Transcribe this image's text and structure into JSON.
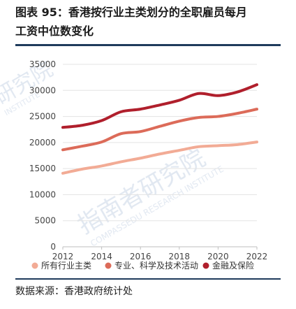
{
  "title": "图表 95：香港按行业主类划分的全职雇员每月\n工资中位数变化",
  "source": "数据来源：香港政府统计处",
  "watermark": {
    "cn": "指南者研究院",
    "en": "COMPASSEDU RESEARCH INSTITUTE",
    "cn_small": "研究院",
    "en_small": "INSTITUTE"
  },
  "colors": {
    "accent_rule": "#1f3b5c",
    "grid": "#e3e3e3"
  },
  "chart_data": {
    "type": "line",
    "x": [
      2012,
      2013,
      2014,
      2015,
      2016,
      2017,
      2018,
      2019,
      2020,
      2021,
      2022
    ],
    "x_ticks": [
      "2012",
      "2014",
      "2016",
      "2018",
      "2020",
      "2022"
    ],
    "y_ticks": [
      "0",
      "5000",
      "10000",
      "15000",
      "20000",
      "25000",
      "30000",
      "35000"
    ],
    "ylim": [
      0,
      35000
    ],
    "xlim": [
      2012,
      2022
    ],
    "grid": "horizontal",
    "legend_position": "bottom",
    "series": [
      {
        "name": "所有行业主类",
        "color": "#f2ab95",
        "values": [
          14100,
          14900,
          15500,
          16300,
          17000,
          17800,
          18500,
          19200,
          19400,
          19600,
          20100
        ]
      },
      {
        "name": "专业、科学及技术活动",
        "color": "#dc6b59",
        "values": [
          18600,
          19300,
          20100,
          21700,
          22100,
          23100,
          24100,
          24800,
          25000,
          25600,
          26400
        ]
      },
      {
        "name": "金融及保险",
        "color": "#b01f2c",
        "values": [
          22900,
          23300,
          24200,
          25900,
          26400,
          27200,
          28100,
          29400,
          29000,
          29700,
          31100
        ]
      }
    ]
  }
}
